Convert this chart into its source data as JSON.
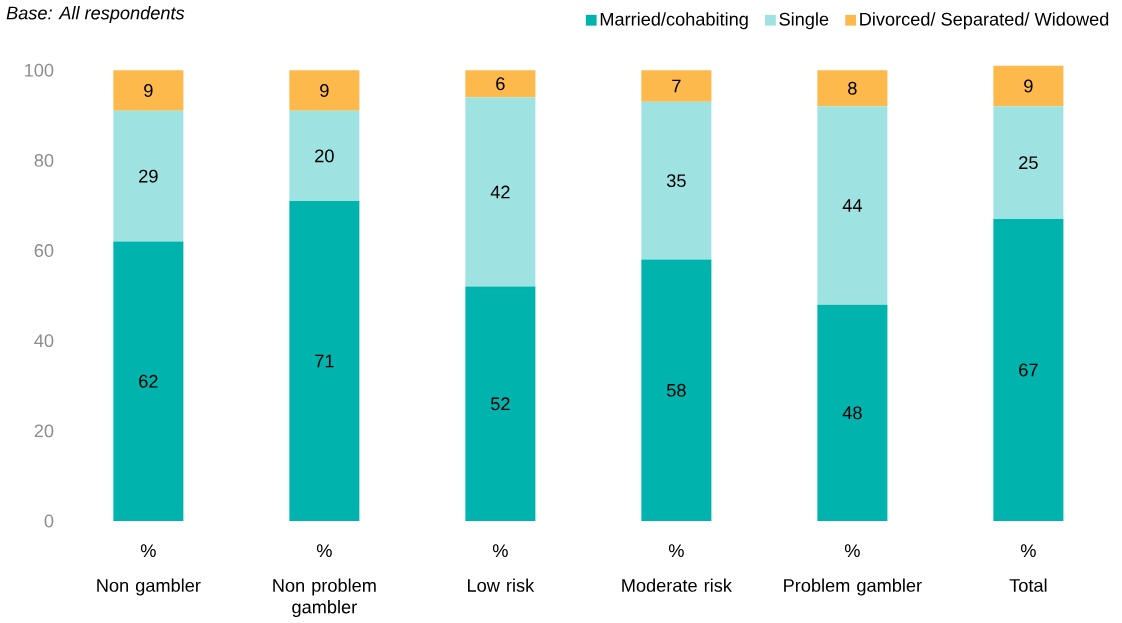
{
  "chart_data": {
    "type": "bar",
    "stacked": true,
    "data_labels": true,
    "legend": "top right",
    "grid": false,
    "categories": [
      "Non gambler",
      "Non problem gambler",
      "Low risk",
      "Moderate risk",
      "Problem gambler",
      "Total"
    ],
    "series": [
      {
        "name": "Married/cohabiting",
        "color": "#00b3ad",
        "values": [
          62,
          71,
          52,
          58,
          48,
          67
        ]
      },
      {
        "name": "Single",
        "color": "#9ee3e2",
        "values": [
          29,
          20,
          42,
          35,
          44,
          25
        ]
      },
      {
        "name": "Divorced/ Separated/ Widowed",
        "color": "#fdb94b",
        "values": [
          9,
          9,
          6,
          7,
          8,
          9
        ]
      }
    ],
    "ylim": [
      0,
      101
    ],
    "yticks": [
      0,
      20,
      40,
      60,
      80,
      100
    ],
    "annotations": [
      "Base: All respondents",
      "%",
      "%",
      "%",
      "%",
      "%",
      "%"
    ]
  }
}
